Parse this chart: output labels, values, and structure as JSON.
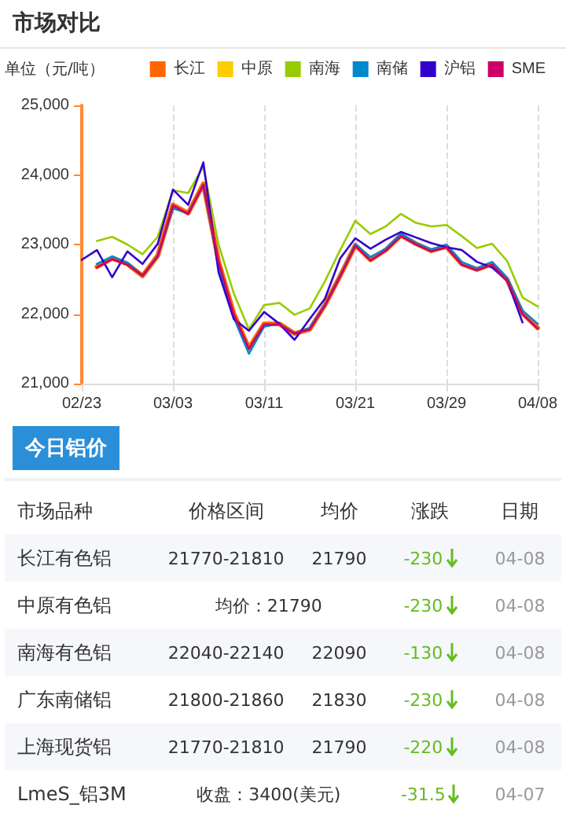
{
  "chart_data": [
    {
      "type": "line",
      "title": "市场对比",
      "ylabel": "单位（元/吨）",
      "categories": [
        "02/23",
        null,
        null,
        null,
        null,
        null,
        "03/03",
        null,
        null,
        null,
        null,
        null,
        "03/11",
        null,
        null,
        null,
        null,
        null,
        "03/21",
        null,
        null,
        null,
        null,
        null,
        "03/29",
        null,
        null,
        null,
        null,
        null,
        "04/08"
      ],
      "series": [
        {
          "name": "长江",
          "color": "#ff6600",
          "values": [
            null,
            22680,
            22800,
            22720,
            22550,
            22840,
            23570,
            23450,
            23870,
            22760,
            22010,
            21510,
            21860,
            21860,
            21720,
            21780,
            22130,
            22550,
            22990,
            22780,
            22920,
            23130,
            23010,
            22910,
            22970,
            22720,
            22640,
            22720,
            22490,
            22010,
            21800
          ]
        },
        {
          "name": "中原",
          "color": "#ffcc00",
          "values": [
            null,
            null,
            null,
            null,
            null,
            null,
            null,
            null,
            null,
            null,
            null,
            null,
            null,
            null,
            null,
            null,
            null,
            null,
            null,
            null,
            null,
            null,
            null,
            null,
            null,
            null,
            null,
            null,
            null,
            null,
            null
          ]
        },
        {
          "name": "南海",
          "color": "#99cc00",
          "values": [
            null,
            23050,
            23110,
            23000,
            22860,
            23110,
            23780,
            23740,
            24120,
            23000,
            22300,
            21780,
            22130,
            22160,
            21990,
            22080,
            22470,
            22920,
            23340,
            23150,
            23260,
            23440,
            23310,
            23260,
            23280,
            23120,
            22950,
            23010,
            22760,
            22240,
            22110
          ]
        },
        {
          "name": "南储",
          "color": "#0088cc",
          "values": [
            null,
            22720,
            22830,
            22740,
            22550,
            22840,
            23520,
            23450,
            23850,
            22700,
            21950,
            21430,
            21820,
            21860,
            21720,
            21800,
            22130,
            22550,
            23000,
            22820,
            22940,
            23160,
            23020,
            22930,
            23000,
            22750,
            22660,
            22750,
            22520,
            22050,
            21860
          ]
        },
        {
          "name": "沪铝",
          "color": "#3300cc",
          "values": [
            22780,
            22920,
            22530,
            22900,
            22720,
            23010,
            23790,
            23570,
            24180,
            22600,
            21930,
            21760,
            22030,
            21860,
            21630,
            21930,
            22220,
            22800,
            23090,
            22940,
            23070,
            23180,
            23100,
            23020,
            22960,
            22920,
            22750,
            22670,
            22480,
            21880,
            null
          ]
        },
        {
          "name": "SME",
          "color": "#cc0066",
          "values": [
            null,
            22670,
            22790,
            22710,
            22550,
            22830,
            23560,
            23440,
            23860,
            22750,
            22000,
            21500,
            21850,
            21850,
            21720,
            21780,
            22120,
            22540,
            22980,
            22770,
            22910,
            23120,
            23000,
            22900,
            22960,
            22710,
            22630,
            22710,
            22480,
            22000,
            21790
          ]
        }
      ],
      "ylim": [
        21000,
        25000
      ],
      "yticks": [
        {
          "value": 21000,
          "label": "21,000"
        },
        {
          "value": 22000,
          "label": "22,000"
        },
        {
          "value": 23000,
          "label": "23,000"
        },
        {
          "value": 24000,
          "label": "24,000"
        },
        {
          "value": 25000,
          "label": "25,000"
        }
      ],
      "grid": "x",
      "legend": "top right",
      "marker": "none",
      "line_style": "solid"
    },
    {
      "type": "other",
      "title": "今日铝价",
      "categories": [
        "市场品种",
        "价格区间",
        "均价",
        "涨跌",
        "日期"
      ],
      "y_categories": [
        "长江有色铝",
        "中原有色铝",
        "南海有色铝",
        "广东南储铝",
        "上海现货铝",
        "LmeS_铝3M"
      ],
      "cell_labels": [
        [
          "21770-21810",
          "21790",
          "-230",
          "04-08"
        ],
        [
          "均价：21790",
          null,
          "-230",
          "04-08"
        ],
        [
          "22040-22140",
          "22090",
          "-130",
          "04-08"
        ],
        [
          "21800-21860",
          "21830",
          "-230",
          "04-08"
        ],
        [
          "21770-21810",
          "21790",
          "-220",
          "04-08"
        ],
        [
          "收盘：3400(美元)",
          null,
          "-31.5",
          "04-07"
        ]
      ]
    }
  ]
}
